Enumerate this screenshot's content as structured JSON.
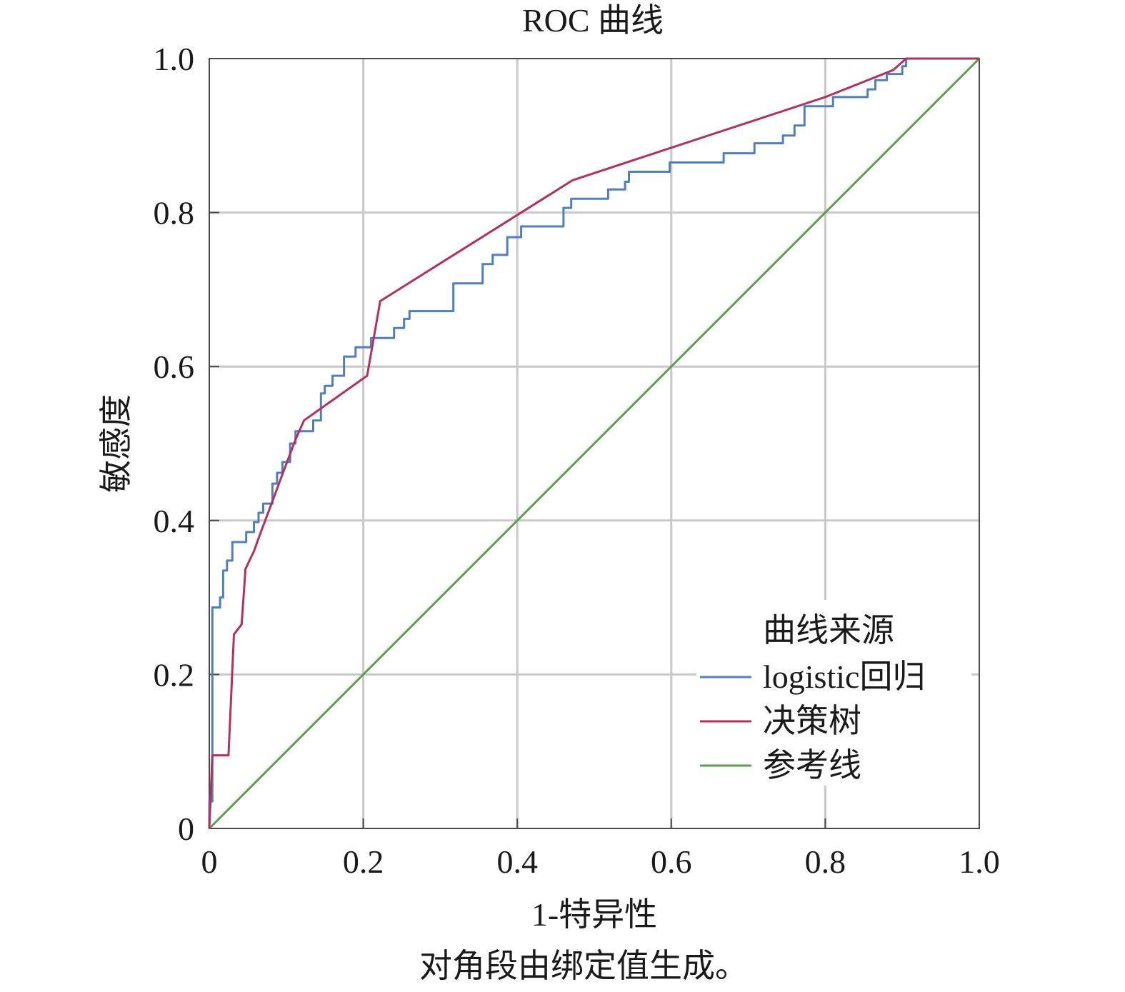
{
  "chart_data": {
    "type": "line",
    "title": "ROC 曲线",
    "xlabel": "1-特异性",
    "ylabel": "敏感度",
    "footnote": "对角段由绑定值生成。",
    "xlim": [
      0,
      1
    ],
    "ylim": [
      0,
      1
    ],
    "x_ticks": [
      "0",
      "0.2",
      "0.4",
      "0.6",
      "0.8",
      "1.0"
    ],
    "y_ticks": [
      "0",
      "0.2",
      "0.4",
      "0.6",
      "0.8",
      "1.0"
    ],
    "grid": true,
    "legend": {
      "title": "曲线来源",
      "position": "bottom-right"
    },
    "series": [
      {
        "name": "logistic回归",
        "color": "#4f7fbf",
        "step": true,
        "points": [
          [
            0,
            0
          ],
          [
            0,
            0.035
          ],
          [
            0.004,
            0.035
          ],
          [
            0.004,
            0.287
          ],
          [
            0.014,
            0.287
          ],
          [
            0.014,
            0.3
          ],
          [
            0.018,
            0.3
          ],
          [
            0.018,
            0.335
          ],
          [
            0.023,
            0.335
          ],
          [
            0.023,
            0.348
          ],
          [
            0.03,
            0.348
          ],
          [
            0.03,
            0.372
          ],
          [
            0.048,
            0.372
          ],
          [
            0.048,
            0.385
          ],
          [
            0.058,
            0.385
          ],
          [
            0.058,
            0.398
          ],
          [
            0.064,
            0.398
          ],
          [
            0.064,
            0.41
          ],
          [
            0.07,
            0.41
          ],
          [
            0.07,
            0.422
          ],
          [
            0.082,
            0.422
          ],
          [
            0.082,
            0.448
          ],
          [
            0.088,
            0.448
          ],
          [
            0.088,
            0.462
          ],
          [
            0.095,
            0.462
          ],
          [
            0.095,
            0.476
          ],
          [
            0.105,
            0.476
          ],
          [
            0.105,
            0.5
          ],
          [
            0.112,
            0.5
          ],
          [
            0.112,
            0.516
          ],
          [
            0.135,
            0.516
          ],
          [
            0.135,
            0.53
          ],
          [
            0.145,
            0.53
          ],
          [
            0.145,
            0.565
          ],
          [
            0.15,
            0.565
          ],
          [
            0.15,
            0.575
          ],
          [
            0.16,
            0.575
          ],
          [
            0.16,
            0.588
          ],
          [
            0.175,
            0.588
          ],
          [
            0.175,
            0.613
          ],
          [
            0.19,
            0.613
          ],
          [
            0.19,
            0.625
          ],
          [
            0.21,
            0.625
          ],
          [
            0.21,
            0.637
          ],
          [
            0.24,
            0.637
          ],
          [
            0.24,
            0.65
          ],
          [
            0.253,
            0.65
          ],
          [
            0.253,
            0.662
          ],
          [
            0.26,
            0.662
          ],
          [
            0.26,
            0.672
          ],
          [
            0.317,
            0.672
          ],
          [
            0.317,
            0.708
          ],
          [
            0.355,
            0.708
          ],
          [
            0.355,
            0.733
          ],
          [
            0.368,
            0.733
          ],
          [
            0.368,
            0.745
          ],
          [
            0.387,
            0.745
          ],
          [
            0.387,
            0.768
          ],
          [
            0.405,
            0.768
          ],
          [
            0.405,
            0.782
          ],
          [
            0.46,
            0.782
          ],
          [
            0.46,
            0.806
          ],
          [
            0.47,
            0.806
          ],
          [
            0.47,
            0.818
          ],
          [
            0.49,
            0.818
          ],
          [
            0.49,
            0.818
          ],
          [
            0.518,
            0.818
          ],
          [
            0.518,
            0.83
          ],
          [
            0.54,
            0.83
          ],
          [
            0.54,
            0.84
          ],
          [
            0.545,
            0.84
          ],
          [
            0.545,
            0.853
          ],
          [
            0.598,
            0.853
          ],
          [
            0.598,
            0.865
          ],
          [
            0.668,
            0.865
          ],
          [
            0.668,
            0.877
          ],
          [
            0.708,
            0.877
          ],
          [
            0.708,
            0.89
          ],
          [
            0.745,
            0.89
          ],
          [
            0.745,
            0.9
          ],
          [
            0.76,
            0.9
          ],
          [
            0.76,
            0.913
          ],
          [
            0.773,
            0.913
          ],
          [
            0.773,
            0.938
          ],
          [
            0.81,
            0.938
          ],
          [
            0.81,
            0.95
          ],
          [
            0.855,
            0.95
          ],
          [
            0.855,
            0.96
          ],
          [
            0.865,
            0.96
          ],
          [
            0.865,
            0.972
          ],
          [
            0.88,
            0.972
          ],
          [
            0.88,
            0.98
          ],
          [
            0.9,
            0.98
          ],
          [
            0.9,
            0.99
          ],
          [
            0.905,
            0.99
          ],
          [
            0.905,
            1.0
          ],
          [
            1.0,
            1.0
          ]
        ]
      },
      {
        "name": "决策树",
        "color": "#b5305e",
        "step": false,
        "points": [
          [
            0,
            0
          ],
          [
            0.004,
            0.095
          ],
          [
            0.025,
            0.095
          ],
          [
            0.032,
            0.252
          ],
          [
            0.042,
            0.265
          ],
          [
            0.047,
            0.337
          ],
          [
            0.058,
            0.36
          ],
          [
            0.067,
            0.385
          ],
          [
            0.082,
            0.425
          ],
          [
            0.095,
            0.46
          ],
          [
            0.112,
            0.505
          ],
          [
            0.123,
            0.53
          ],
          [
            0.205,
            0.588
          ],
          [
            0.222,
            0.685
          ],
          [
            0.472,
            0.842
          ],
          [
            0.8,
            0.95
          ],
          [
            0.888,
            0.985
          ],
          [
            0.905,
            1.0
          ],
          [
            1.0,
            1.0
          ]
        ]
      },
      {
        "name": "参考线",
        "color": "#5f9e4f",
        "step": false,
        "points": [
          [
            0,
            0
          ],
          [
            1,
            1
          ]
        ]
      }
    ]
  }
}
